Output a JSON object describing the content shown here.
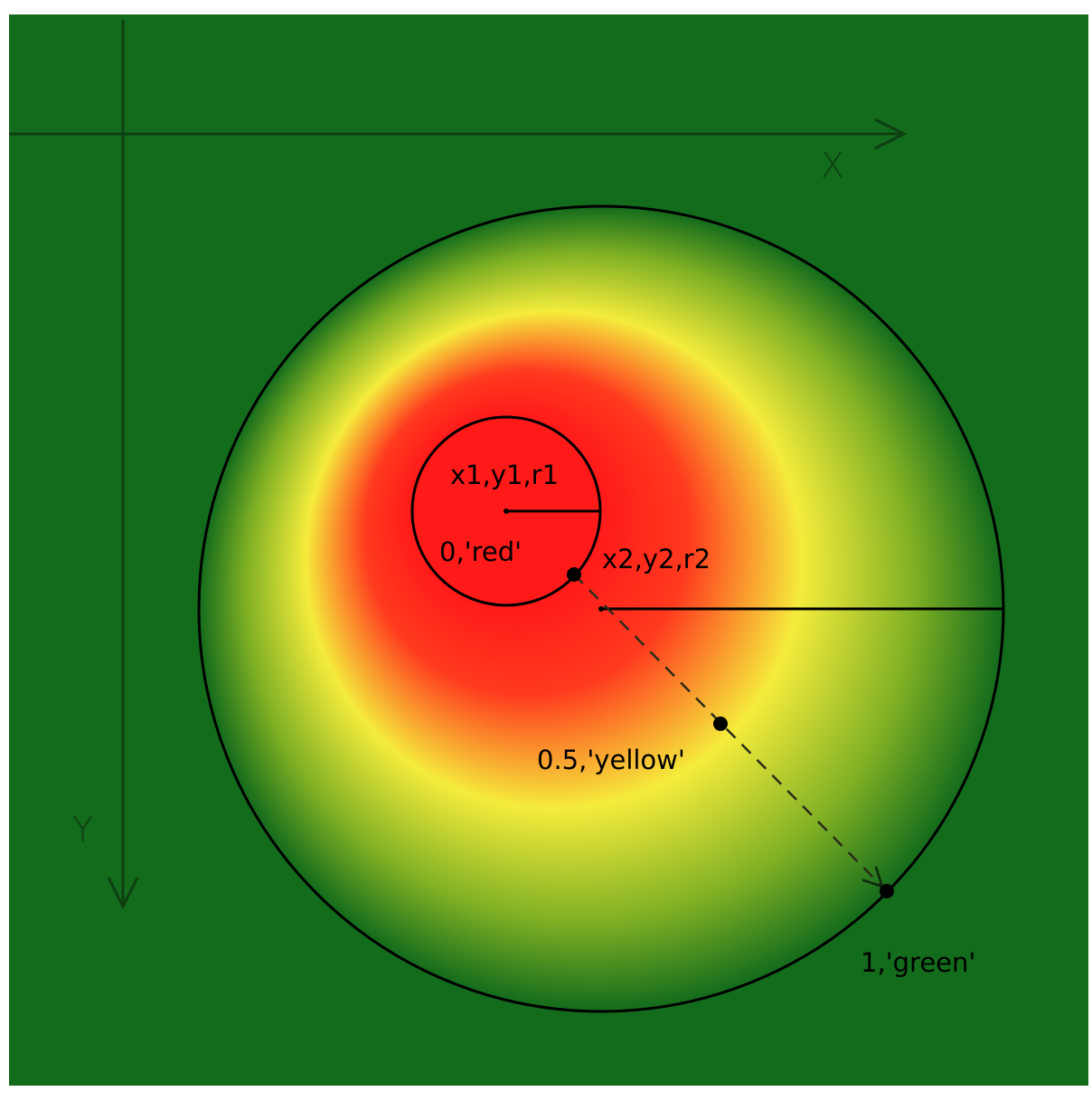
{
  "colors": {
    "background": "#136b1c",
    "stop_red": "#ff1a1a",
    "stop_yellow": "#f5ec3c",
    "stop_green": "#136b1c",
    "axis_stroke": "#0d3f12",
    "line_stroke": "#000000",
    "label_text": "#000000"
  },
  "axes": {
    "x_label": "X",
    "y_label": "Y"
  },
  "labels": {
    "inner_circle": "x1,y1,r1",
    "stop_0": "0,'red'",
    "outer_circle": "x2,y2,r2",
    "stop_05": "0.5,'yellow'",
    "stop_1": "1,'green'"
  },
  "gradient_stops": [
    {
      "offset": 0,
      "color": "red"
    },
    {
      "offset": 0.5,
      "color": "yellow"
    },
    {
      "offset": 1,
      "color": "green"
    }
  ]
}
